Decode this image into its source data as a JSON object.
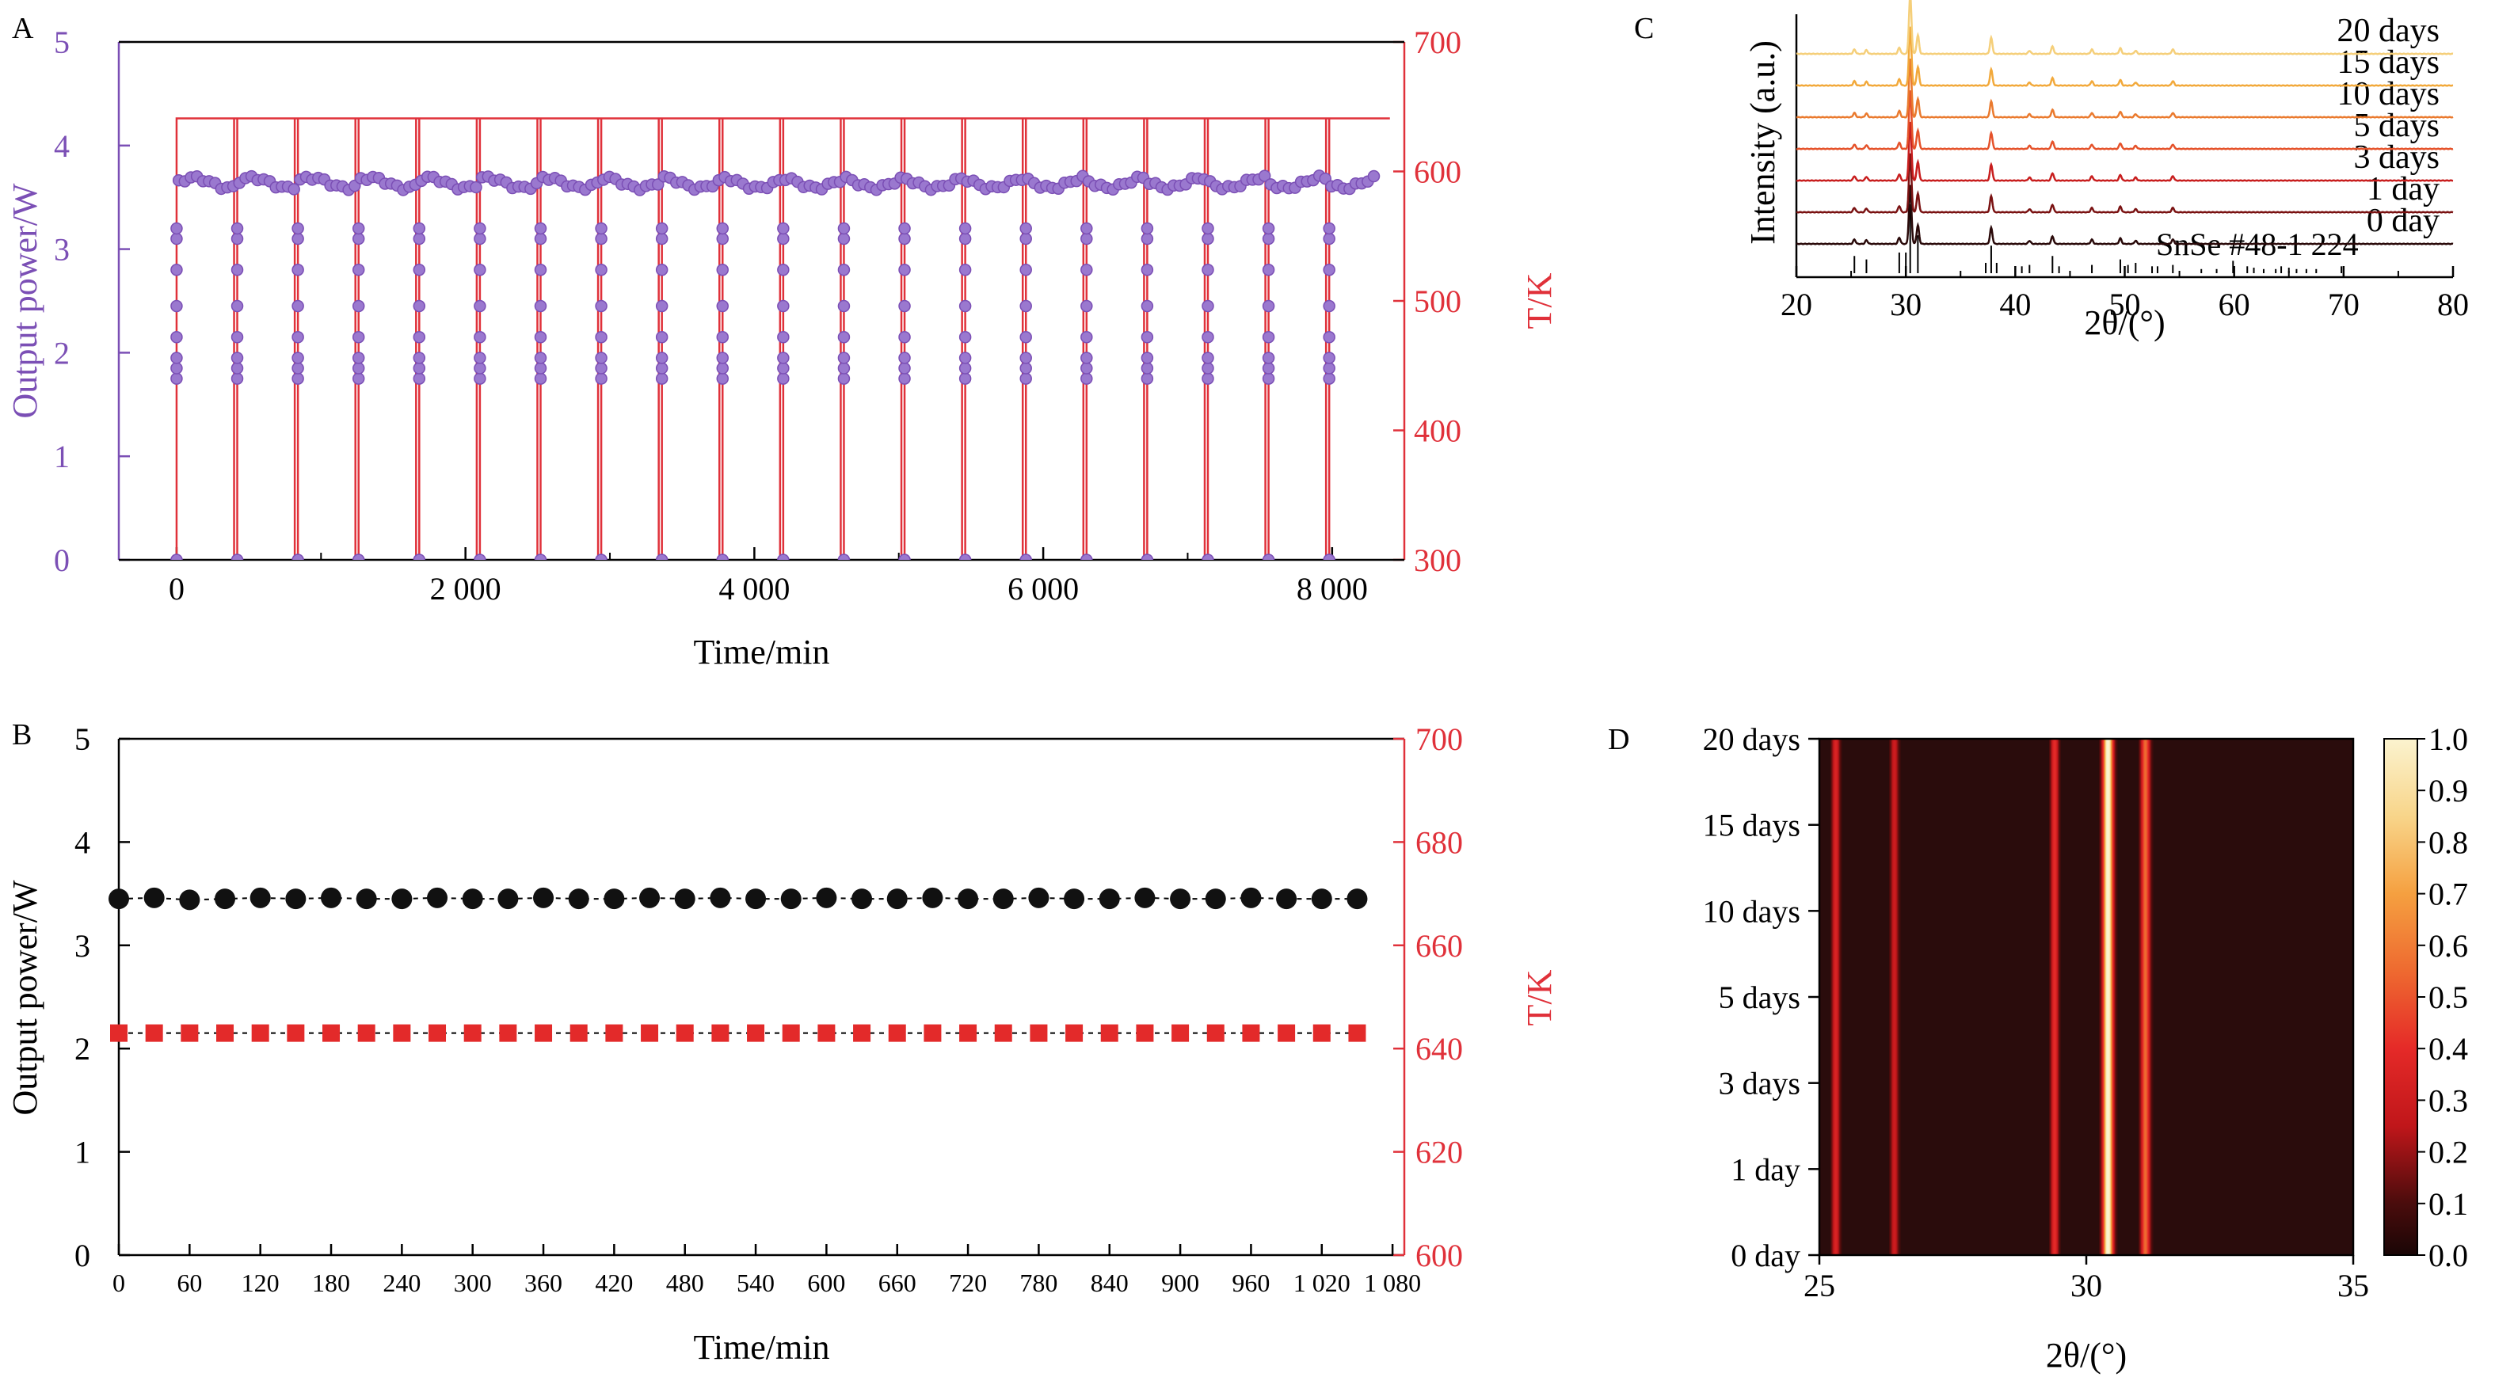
{
  "colors": {
    "purple": "#7b4fb5",
    "purple_fill": "#9a78cf",
    "red": "#e0313a",
    "axis": "#000000",
    "black_marker": "#111111",
    "red_marker": "#e32a2a"
  },
  "chart_data": [
    {
      "panel": "A",
      "type": "scatter",
      "xlabel": "Time/min",
      "ylabel_left": "Output power/W",
      "ylabel_right": "T/K",
      "xlim": [
        -400,
        8500
      ],
      "ylim_left": [
        0,
        5
      ],
      "ylim_right": [
        300,
        700
      ],
      "xticks": [
        0,
        2000,
        4000,
        6000,
        8000
      ],
      "xtick_labels": [
        "0",
        "2 000",
        "4 000",
        "6 000",
        "8 000"
      ],
      "yticks_left": [
        0,
        1,
        2,
        3,
        4,
        5
      ],
      "yticks_right": [
        300,
        400,
        500,
        600,
        700
      ],
      "cycles": {
        "start_times": [
          0,
          420,
          840,
          1260,
          1680,
          2100,
          2520,
          2940,
          3360,
          3780,
          4200,
          4620,
          5040,
          5460,
          5880,
          6300,
          6720,
          7140,
          7560,
          7980
        ],
        "series_end_time": 8400,
        "hot_temperature_K": 641,
        "cold_temperature_K": 300,
        "ramp_power_values_W": [
          0,
          1.75,
          1.85,
          1.95,
          2.15,
          2.45,
          2.8,
          3.1,
          3.2
        ],
        "plateau_power_W": 3.64
      },
      "series": [
        {
          "name": "Output power",
          "axis": "left",
          "color": "purple"
        },
        {
          "name": "T",
          "axis": "right",
          "color": "red"
        }
      ]
    },
    {
      "panel": "B",
      "type": "line",
      "xlabel": "Time/min",
      "ylabel_left": "Output power/W",
      "ylabel_right": "T/K",
      "xlim": [
        0,
        1090
      ],
      "ylim_left": [
        0,
        5
      ],
      "ylim_right": [
        600,
        700
      ],
      "xticks": [
        0,
        60,
        120,
        180,
        240,
        300,
        360,
        420,
        480,
        540,
        600,
        660,
        720,
        780,
        840,
        900,
        960,
        1020,
        1080
      ],
      "xtick_labels": [
        "0",
        "60",
        "120",
        "180",
        "240",
        "300",
        "360",
        "420",
        "480",
        "540",
        "600",
        "660",
        "720",
        "780",
        "840",
        "900",
        "960",
        "1 020",
        "1 080"
      ],
      "yticks_left": [
        0,
        1,
        2,
        3,
        4,
        5
      ],
      "yticks_right": [
        600,
        620,
        640,
        660,
        680,
        700
      ],
      "x": [
        0,
        30,
        60,
        90,
        120,
        150,
        180,
        210,
        240,
        270,
        300,
        330,
        360,
        390,
        420,
        450,
        480,
        510,
        540,
        570,
        600,
        630,
        660,
        690,
        720,
        750,
        780,
        810,
        840,
        870,
        900,
        930,
        960,
        990,
        1020,
        1050
      ],
      "series": [
        {
          "name": "Output power",
          "axis": "left",
          "marker": "circle",
          "color": "black",
          "values": [
            3.45,
            3.46,
            3.44,
            3.45,
            3.46,
            3.45,
            3.46,
            3.45,
            3.45,
            3.46,
            3.45,
            3.45,
            3.46,
            3.45,
            3.45,
            3.46,
            3.45,
            3.46,
            3.45,
            3.45,
            3.46,
            3.45,
            3.45,
            3.46,
            3.45,
            3.45,
            3.46,
            3.45,
            3.45,
            3.46,
            3.45,
            3.45,
            3.46,
            3.45,
            3.45,
            3.45
          ]
        },
        {
          "name": "T",
          "axis": "right",
          "marker": "square",
          "color": "red",
          "values": [
            643,
            643,
            643,
            643,
            643,
            643,
            643,
            643,
            643,
            643,
            643,
            643,
            643,
            643,
            643,
            643,
            643,
            643,
            643,
            643,
            643,
            643,
            643,
            643,
            643,
            643,
            643,
            643,
            643,
            643,
            643,
            643,
            643,
            643,
            643,
            643
          ]
        }
      ]
    },
    {
      "panel": "C",
      "type": "line",
      "xlabel": "2θ/(°)",
      "ylabel": "Intensity (a.u.)",
      "xlim": [
        20,
        80
      ],
      "xticks": [
        20,
        30,
        40,
        50,
        60,
        70,
        80
      ],
      "series": [
        {
          "name": "0 day",
          "color": "#2a0a0a"
        },
        {
          "name": "1 day",
          "color": "#7a1212"
        },
        {
          "name": "3 days",
          "color": "#c81e1e"
        },
        {
          "name": "5 days",
          "color": "#e5522a"
        },
        {
          "name": "10 days",
          "color": "#ea7a2e"
        },
        {
          "name": "15 days",
          "color": "#f2a93b"
        },
        {
          "name": "20 days",
          "color": "#f5cf7a"
        }
      ],
      "peaks": [
        {
          "x": 25.3,
          "h": 0.07
        },
        {
          "x": 26.4,
          "h": 0.06
        },
        {
          "x": 29.4,
          "h": 0.1
        },
        {
          "x": 30.4,
          "h": 0.95
        },
        {
          "x": 31.1,
          "h": 0.3
        },
        {
          "x": 37.8,
          "h": 0.26
        },
        {
          "x": 41.3,
          "h": 0.05
        },
        {
          "x": 43.4,
          "h": 0.12
        },
        {
          "x": 47.0,
          "h": 0.07
        },
        {
          "x": 49.6,
          "h": 0.09
        },
        {
          "x": 51.0,
          "h": 0.05
        },
        {
          "x": 54.4,
          "h": 0.07
        }
      ],
      "reference": {
        "label": "SnSe #48-1 224",
        "lines": [
          {
            "x": 25.3,
            "h": 0.25
          },
          {
            "x": 26.4,
            "h": 0.2
          },
          {
            "x": 29.4,
            "h": 0.3
          },
          {
            "x": 30.0,
            "h": 0.3
          },
          {
            "x": 30.4,
            "h": 1.0
          },
          {
            "x": 31.1,
            "h": 0.55
          },
          {
            "x": 37.3,
            "h": 0.15
          },
          {
            "x": 37.8,
            "h": 0.4
          },
          {
            "x": 38.3,
            "h": 0.15
          },
          {
            "x": 40.6,
            "h": 0.1
          },
          {
            "x": 41.3,
            "h": 0.12
          },
          {
            "x": 43.4,
            "h": 0.25
          },
          {
            "x": 44.0,
            "h": 0.1
          },
          {
            "x": 47.0,
            "h": 0.12
          },
          {
            "x": 49.6,
            "h": 0.2
          },
          {
            "x": 50.3,
            "h": 0.12
          },
          {
            "x": 51.0,
            "h": 0.15
          },
          {
            "x": 52.5,
            "h": 0.1
          },
          {
            "x": 53.0,
            "h": 0.1
          },
          {
            "x": 54.4,
            "h": 0.12
          },
          {
            "x": 57.0,
            "h": 0.06
          },
          {
            "x": 58.4,
            "h": 0.06
          },
          {
            "x": 59.9,
            "h": 0.18
          },
          {
            "x": 61.2,
            "h": 0.1
          },
          {
            "x": 61.8,
            "h": 0.08
          },
          {
            "x": 62.7,
            "h": 0.06
          },
          {
            "x": 63.8,
            "h": 0.06
          },
          {
            "x": 64.3,
            "h": 0.1
          },
          {
            "x": 65.0,
            "h": 0.08
          },
          {
            "x": 65.7,
            "h": 0.06
          },
          {
            "x": 66.6,
            "h": 0.06
          },
          {
            "x": 67.5,
            "h": 0.06
          },
          {
            "x": 69.8,
            "h": 0.1
          }
        ]
      }
    },
    {
      "panel": "D",
      "type": "heatmap",
      "xlabel": "2θ/(°)",
      "xlim": [
        25,
        35
      ],
      "xticks": [
        25,
        30,
        35
      ],
      "ylabels": [
        "0 day",
        "1 day",
        "3 days",
        "5 days",
        "10 days",
        "15 days",
        "20 days"
      ],
      "colorbar": {
        "min": 0.0,
        "max": 1.0,
        "ticks": [
          "0.0",
          "0.1",
          "0.2",
          "0.3",
          "0.4",
          "0.5",
          "0.6",
          "0.7",
          "0.8",
          "0.9",
          "1.0"
        ]
      },
      "peaks": [
        {
          "x": 25.3,
          "intensity": 0.3,
          "width": 0.07
        },
        {
          "x": 26.4,
          "intensity": 0.25,
          "width": 0.07
        },
        {
          "x": 29.4,
          "intensity": 0.35,
          "width": 0.07
        },
        {
          "x": 30.4,
          "intensity": 1.0,
          "width": 0.09
        },
        {
          "x": 31.1,
          "intensity": 0.5,
          "width": 0.08
        }
      ]
    }
  ]
}
